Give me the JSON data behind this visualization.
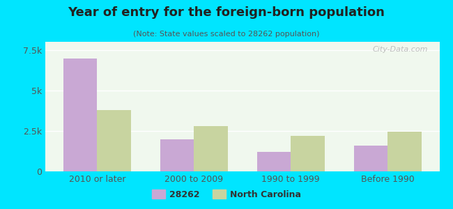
{
  "title": "Year of entry for the foreign-born population",
  "subtitle": "(Note: State values scaled to 28262 population)",
  "categories": [
    "2010 or later",
    "2000 to 2009",
    "1990 to 1999",
    "Before 1990"
  ],
  "values_28262": [
    6950,
    2000,
    1200,
    1600
  ],
  "values_nc": [
    3800,
    2800,
    2200,
    2450
  ],
  "color_28262": "#c9a8d4",
  "color_nc": "#c8d4a0",
  "background_outer": "#00e5ff",
  "background_inner": "#f0f8ee",
  "ylim": [
    0,
    8000
  ],
  "yticks": [
    0,
    2500,
    5000,
    7500
  ],
  "ytick_labels": [
    "0",
    "2.5k",
    "5k",
    "7.5k"
  ],
  "bar_width": 0.35,
  "legend_labels": [
    "28262",
    "North Carolina"
  ],
  "watermark": "City-Data.com"
}
